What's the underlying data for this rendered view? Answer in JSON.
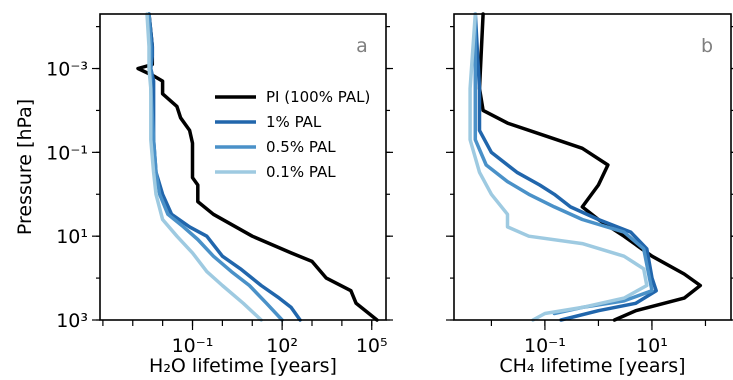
{
  "chart_data": [
    {
      "type": "line",
      "panel_label": "a",
      "xlabel": "H₂O lifetime [years]",
      "ylabel": "Pressure [hPa]",
      "xscale": "log",
      "yscale": "log",
      "y_inverted": true,
      "xlim": [
        8e-05,
        300000
      ],
      "ylim": [
        1000,
        5e-05
      ],
      "xticks": [
        {
          "value": 0.1,
          "label": "10⁻¹"
        },
        {
          "value": 100,
          "label": "10²"
        },
        {
          "value": 100000,
          "label": "10⁵"
        }
      ],
      "yticks": [
        {
          "value": 0.001,
          "label": "10⁻³"
        },
        {
          "value": 0.1,
          "label": "10⁻¹"
        },
        {
          "value": 10,
          "label": "10¹"
        },
        {
          "value": 1000,
          "label": "10³"
        }
      ],
      "legend_position": "center-right",
      "series": [
        {
          "name": "PI (100% PAL)",
          "color": "#000000",
          "points": [
            [
              0.0035,
              5e-05
            ],
            [
              0.0045,
              0.0003
            ],
            [
              0.0045,
              0.0008
            ],
            [
              0.0015,
              0.001
            ],
            [
              0.005,
              0.0015
            ],
            [
              0.01,
              0.002
            ],
            [
              0.01,
              0.004
            ],
            [
              0.03,
              0.008
            ],
            [
              0.04,
              0.015
            ],
            [
              0.08,
              0.03
            ],
            [
              0.1,
              0.06
            ],
            [
              0.1,
              0.2
            ],
            [
              0.1,
              0.4
            ],
            [
              0.15,
              0.6
            ],
            [
              0.15,
              1.5
            ],
            [
              0.5,
              3
            ],
            [
              10,
              10
            ],
            [
              200,
              25
            ],
            [
              1000,
              40
            ],
            [
              3000,
              100
            ],
            [
              20000,
              200
            ],
            [
              30000,
              400
            ],
            [
              80000,
              700
            ],
            [
              150000,
              1000
            ]
          ]
        },
        {
          "name": "1% PAL",
          "color": "#2166ac",
          "points": [
            [
              0.0035,
              5e-05
            ],
            [
              0.0045,
              0.0003
            ],
            [
              0.0045,
              0.0005
            ],
            [
              0.004,
              0.001
            ],
            [
              0.005,
              0.002
            ],
            [
              0.005,
              0.05
            ],
            [
              0.006,
              0.3
            ],
            [
              0.01,
              1
            ],
            [
              0.02,
              3
            ],
            [
              0.08,
              6
            ],
            [
              0.3,
              10
            ],
            [
              1,
              30
            ],
            [
              4,
              60
            ],
            [
              20,
              150
            ],
            [
              80,
              300
            ],
            [
              200,
              500
            ],
            [
              400,
              1000
            ]
          ]
        },
        {
          "name": "0.5% PAL",
          "color": "#4a91c8",
          "points": [
            [
              0.0035,
              5e-05
            ],
            [
              0.004,
              0.0003
            ],
            [
              0.004,
              0.001
            ],
            [
              0.004,
              0.003
            ],
            [
              0.005,
              0.05
            ],
            [
              0.006,
              0.3
            ],
            [
              0.008,
              1
            ],
            [
              0.015,
              3
            ],
            [
              0.05,
              6
            ],
            [
              0.15,
              12
            ],
            [
              0.5,
              30
            ],
            [
              2,
              70
            ],
            [
              8,
              150
            ],
            [
              30,
              400
            ],
            [
              100,
              1000
            ]
          ]
        },
        {
          "name": "0.1% PAL",
          "color": "#9ecae1",
          "points": [
            [
              0.003,
              5e-05
            ],
            [
              0.0035,
              0.0003
            ],
            [
              0.0035,
              0.001
            ],
            [
              0.004,
              0.003
            ],
            [
              0.004,
              0.05
            ],
            [
              0.005,
              0.3
            ],
            [
              0.006,
              1
            ],
            [
              0.01,
              4
            ],
            [
              0.03,
              10
            ],
            [
              0.1,
              25
            ],
            [
              0.3,
              70
            ],
            [
              1,
              150
            ],
            [
              5,
              400
            ],
            [
              20,
              1000
            ]
          ]
        }
      ]
    },
    {
      "type": "line",
      "panel_label": "b",
      "xlabel": "CH₄ lifetime [years]",
      "ylabel": "",
      "xscale": "log",
      "yscale": "log",
      "y_inverted": true,
      "xlim": [
        0.002,
        300
      ],
      "ylim": [
        1000,
        5e-05
      ],
      "xticks": [
        {
          "value": 0.1,
          "label": "10⁻¹"
        },
        {
          "value": 10,
          "label": "10¹"
        }
      ],
      "yticks": [
        {
          "value": 0.001,
          "label": ""
        },
        {
          "value": 0.1,
          "label": ""
        },
        {
          "value": 10,
          "label": ""
        },
        {
          "value": 1000,
          "label": ""
        }
      ],
      "series": [
        {
          "name": "PI (100% PAL)",
          "color": "#000000",
          "points": [
            [
              0.007,
              5e-05
            ],
            [
              0.006,
              0.003
            ],
            [
              0.007,
              0.01
            ],
            [
              0.02,
              0.02
            ],
            [
              0.1,
              0.04
            ],
            [
              0.5,
              0.08
            ],
            [
              1.5,
              0.2
            ],
            [
              1,
              0.6
            ],
            [
              0.5,
              2
            ],
            [
              1,
              4
            ],
            [
              3,
              10
            ],
            [
              10,
              30
            ],
            [
              40,
              80
            ],
            [
              80,
              150
            ],
            [
              40,
              300
            ],
            [
              5,
              600
            ],
            [
              2,
              1000
            ]
          ]
        },
        {
          "name": "1% PAL",
          "color": "#2166ac",
          "points": [
            [
              0.005,
              5e-05
            ],
            [
              0.006,
              0.003
            ],
            [
              0.006,
              0.03
            ],
            [
              0.01,
              0.1
            ],
            [
              0.03,
              0.3
            ],
            [
              0.08,
              0.6
            ],
            [
              0.15,
              1
            ],
            [
              0.3,
              2
            ],
            [
              1,
              4
            ],
            [
              4,
              8
            ],
            [
              8,
              20
            ],
            [
              10,
              100
            ],
            [
              12,
              200
            ],
            [
              5,
              400
            ],
            [
              1,
              600
            ],
            [
              0.2,
              1000
            ]
          ]
        },
        {
          "name": "0.5% PAL",
          "color": "#4a91c8",
          "points": [
            [
              0.005,
              5e-05
            ],
            [
              0.005,
              0.003
            ],
            [
              0.005,
              0.05
            ],
            [
              0.008,
              0.2
            ],
            [
              0.02,
              0.5
            ],
            [
              0.05,
              1
            ],
            [
              0.15,
              2
            ],
            [
              0.5,
              4
            ],
            [
              3,
              8
            ],
            [
              7,
              20
            ],
            [
              9,
              100
            ],
            [
              10,
              200
            ],
            [
              3,
              350
            ],
            [
              0.5,
              500
            ],
            [
              0.15,
              700
            ]
          ]
        },
        {
          "name": "0.1% PAL",
          "color": "#9ecae1",
          "points": [
            [
              0.005,
              5e-05
            ],
            [
              0.004,
              0.003
            ],
            [
              0.004,
              0.05
            ],
            [
              0.006,
              0.3
            ],
            [
              0.01,
              1
            ],
            [
              0.02,
              3
            ],
            [
              0.02,
              6
            ],
            [
              0.05,
              10
            ],
            [
              0.5,
              15
            ],
            [
              3,
              30
            ],
            [
              7,
              60
            ],
            [
              8,
              150
            ],
            [
              3,
              300
            ],
            [
              0.5,
              500
            ],
            [
              0.1,
              700
            ],
            [
              0.06,
              1000
            ]
          ]
        }
      ]
    }
  ]
}
